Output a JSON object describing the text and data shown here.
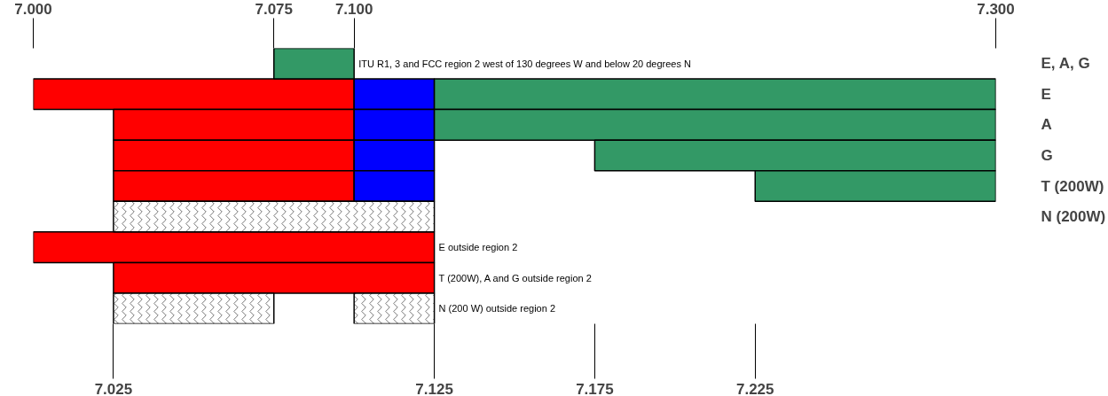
{
  "chart_data": {
    "type": "bar",
    "orientation": "horizontal",
    "categories": [
      "ITU R1, 3 and FCC region 2 west of 130 degrees W and below 20 degrees N",
      null,
      null,
      null,
      null,
      null,
      "E outside region 2",
      "T (200W), A and G outside region 2",
      "N (200 W) outside region 2"
    ],
    "y2_categories": [
      "E, A, G",
      "E",
      "A",
      "G",
      "T (200W)",
      "N (200W)",
      null,
      null,
      null
    ],
    "series": [
      {
        "color": "#ff0000",
        "base": [
          null,
          7.0,
          7.025,
          7.025,
          7.025,
          null,
          7.0,
          7.025,
          null
        ],
        "values": [
          null,
          0.1,
          0.075,
          0.075,
          0.075,
          null,
          0.125,
          0.1,
          null
        ]
      },
      {
        "color": "#0000ff",
        "base": [
          null,
          7.1,
          7.1,
          7.1,
          7.1,
          null,
          null,
          null,
          null
        ],
        "values": [
          null,
          0.025,
          0.025,
          0.025,
          0.025,
          null,
          null,
          null,
          null
        ]
      },
      {
        "color": "#339966",
        "base": [
          7.075,
          7.125,
          7.125,
          7.175,
          7.225,
          null,
          null,
          null,
          null
        ],
        "values": [
          0.025,
          0.175,
          0.175,
          0.125,
          0.075,
          null,
          null,
          null,
          null
        ]
      },
      {
        "color": "#ffffff",
        "base": [
          null,
          null,
          null,
          null,
          null,
          7.025,
          null,
          null,
          7.025
        ],
        "values": [
          null,
          null,
          null,
          null,
          null,
          0.1,
          null,
          null,
          0.05
        ]
      },
      {
        "color": "#ffffff",
        "base": [
          null,
          null,
          null,
          null,
          null,
          null,
          null,
          null,
          7.1
        ],
        "values": [
          null,
          null,
          null,
          null,
          null,
          null,
          null,
          null,
          0.025
        ]
      }
    ],
    "xlim": [
      7.0,
      7.3
    ],
    "xticks": [
      {
        "value": 7.025,
        "label": "7.025"
      },
      {
        "value": 7.125,
        "label": "7.125"
      },
      {
        "value": 7.175,
        "label": "7.175"
      },
      {
        "value": 7.225,
        "label": "7.225"
      }
    ],
    "x2lim": [
      7.0,
      7.3
    ],
    "x2ticks": [
      {
        "value": 7.0,
        "label": "7.000"
      },
      {
        "value": 7.075,
        "label": "7.075"
      },
      {
        "value": 7.1,
        "label": "7.100"
      },
      {
        "value": 7.3,
        "label": "7.300"
      }
    ],
    "grid": false
  }
}
